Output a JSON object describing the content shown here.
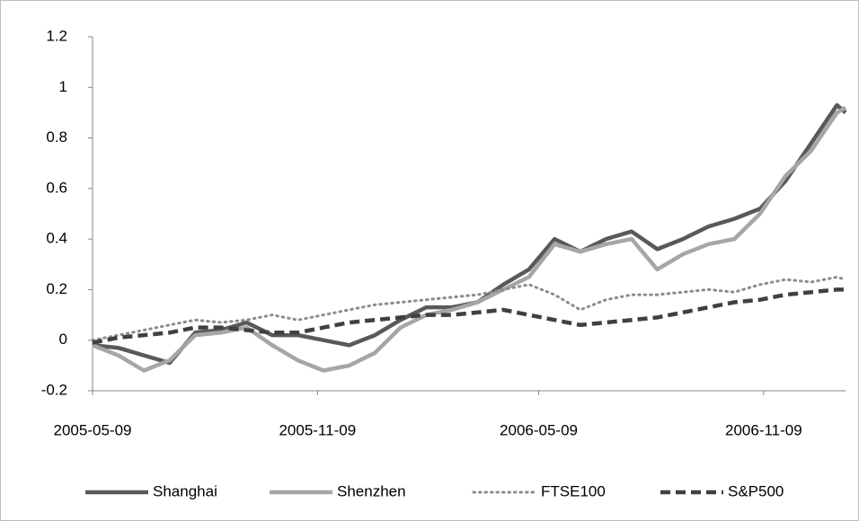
{
  "chart_data": {
    "type": "line",
    "x": [
      "2005-05-09",
      "2005-05-30",
      "2005-06-20",
      "2005-07-11",
      "2005-08-01",
      "2005-08-22",
      "2005-09-12",
      "2005-10-03",
      "2005-10-24",
      "2005-11-14",
      "2005-12-05",
      "2005-12-26",
      "2006-01-16",
      "2006-02-06",
      "2006-02-27",
      "2006-03-20",
      "2006-04-10",
      "2006-05-01",
      "2006-05-22",
      "2006-06-12",
      "2006-07-03",
      "2006-07-24",
      "2006-08-14",
      "2006-09-04",
      "2006-09-25",
      "2006-10-16",
      "2006-11-06",
      "2006-11-27",
      "2006-12-18",
      "2007-01-08",
      "2007-01-15"
    ],
    "series": [
      {
        "name": "Shanghai",
        "color": "#595959",
        "dash": "solid",
        "values": [
          -0.02,
          -0.03,
          -0.06,
          -0.09,
          0.03,
          0.04,
          0.07,
          0.02,
          0.02,
          0.0,
          -0.02,
          0.02,
          0.08,
          0.13,
          0.13,
          0.15,
          0.22,
          0.28,
          0.4,
          0.35,
          0.4,
          0.43,
          0.36,
          0.4,
          0.45,
          0.48,
          0.52,
          0.63,
          0.78,
          0.93,
          0.9
        ]
      },
      {
        "name": "Shenzhen",
        "color": "#a6a6a6",
        "dash": "solid",
        "values": [
          -0.02,
          -0.06,
          -0.12,
          -0.08,
          0.02,
          0.03,
          0.05,
          -0.02,
          -0.08,
          -0.12,
          -0.1,
          -0.05,
          0.05,
          0.1,
          0.12,
          0.15,
          0.2,
          0.25,
          0.38,
          0.35,
          0.38,
          0.4,
          0.28,
          0.34,
          0.38,
          0.4,
          0.5,
          0.65,
          0.75,
          0.9,
          0.92
        ]
      },
      {
        "name": "FTSE100",
        "color": "#8c8c8c",
        "dash": "dotted",
        "values": [
          0.0,
          0.02,
          0.04,
          0.06,
          0.08,
          0.07,
          0.08,
          0.1,
          0.08,
          0.1,
          0.12,
          0.14,
          0.15,
          0.16,
          0.17,
          0.18,
          0.2,
          0.22,
          0.18,
          0.12,
          0.16,
          0.18,
          0.18,
          0.19,
          0.2,
          0.19,
          0.22,
          0.24,
          0.23,
          0.25,
          0.24
        ]
      },
      {
        "name": "S&P500",
        "color": "#404040",
        "dash": "dashed",
        "values": [
          -0.01,
          0.01,
          0.02,
          0.03,
          0.05,
          0.05,
          0.04,
          0.03,
          0.03,
          0.05,
          0.07,
          0.08,
          0.09,
          0.1,
          0.1,
          0.11,
          0.12,
          0.1,
          0.08,
          0.06,
          0.07,
          0.08,
          0.09,
          0.11,
          0.13,
          0.15,
          0.16,
          0.18,
          0.19,
          0.2,
          0.2
        ]
      }
    ],
    "xlim": [
      "2005-05-09",
      "2007-01-15"
    ],
    "xticks": [
      "2005-05-09",
      "2005-11-09",
      "2006-05-09",
      "2006-11-09"
    ],
    "ylim": [
      -0.2,
      1.2
    ],
    "yticks": [
      1.2,
      1,
      0.8,
      0.6,
      0.4,
      0.2,
      0,
      -0.2
    ],
    "legend": "bottom"
  }
}
